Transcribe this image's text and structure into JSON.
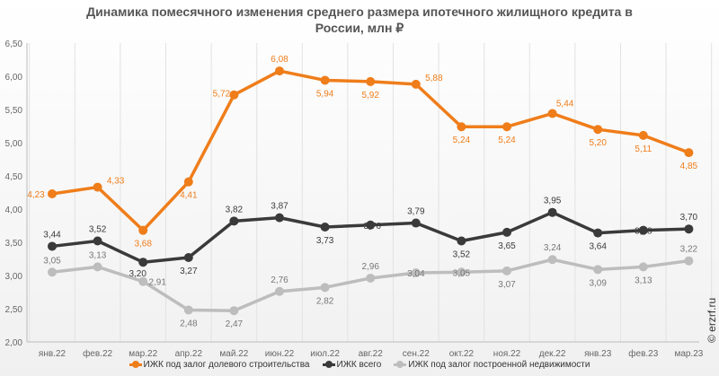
{
  "chart_data": {
    "type": "line",
    "title": "Динамика помесячного изменения среднего размера ипотечного жилищного кредита в России, млн ₽",
    "title_lines": [
      "Динамика помесячного изменения среднего размера ипотечного жилищного кредита в",
      "России, млн ₽"
    ],
    "categories": [
      "янв.22",
      "фев.22",
      "мар.22",
      "апр.22",
      "май.22",
      "июн.22",
      "июл.22",
      "авг.22",
      "сен.22",
      "окт.22",
      "ноя.22",
      "дек.22",
      "янв.23",
      "фев.23",
      "мар.23"
    ],
    "ylim": [
      2.0,
      6.5
    ],
    "yticks": [
      "2,00",
      "2,50",
      "3,00",
      "3,50",
      "4,00",
      "4,50",
      "5,00",
      "5,50",
      "6,00",
      "6,50"
    ],
    "grid": "vertical",
    "legend": "bottom",
    "series": [
      {
        "name": "ИЖК под залог долевого строительства",
        "color": "#ef7d1a",
        "values": [
          4.23,
          4.33,
          3.68,
          4.41,
          5.72,
          6.08,
          5.94,
          5.92,
          5.88,
          5.24,
          5.24,
          5.44,
          5.2,
          5.11,
          4.85
        ]
      },
      {
        "name": "ИЖК всего",
        "color": "#3a3a3a",
        "values": [
          3.44,
          3.52,
          3.2,
          3.27,
          3.82,
          3.87,
          3.73,
          3.76,
          3.79,
          3.52,
          3.65,
          3.95,
          3.64,
          3.68,
          3.7
        ]
      },
      {
        "name": "ИЖК под залог построенной недвижимости",
        "color": "#bdbdbd",
        "values": [
          3.05,
          3.13,
          2.91,
          2.48,
          2.47,
          2.76,
          2.82,
          2.96,
          3.04,
          3.05,
          3.07,
          3.24,
          3.09,
          3.13,
          3.22
        ]
      }
    ]
  },
  "watermark": "© erzrf.ru"
}
